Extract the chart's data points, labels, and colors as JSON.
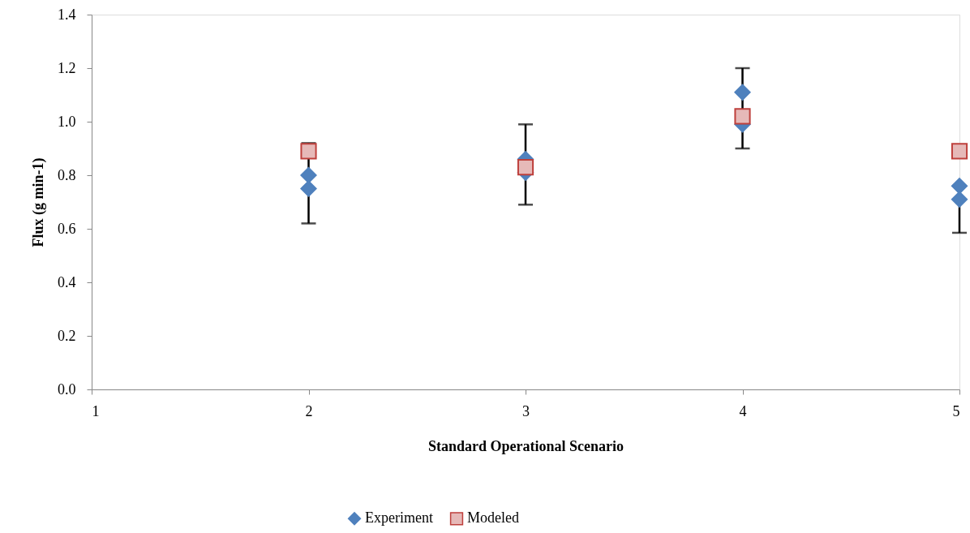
{
  "chart_data": {
    "type": "scatter",
    "xlabel": "Standard Operational Scenario",
    "ylabel": "Flux (g min-1)",
    "xlim": [
      1,
      5
    ],
    "xticks": [
      1,
      2,
      3,
      4,
      5
    ],
    "ylim": [
      0,
      1.4
    ],
    "yticks": [
      {
        "value": 0,
        "label": "0.0"
      },
      {
        "value": 0.2,
        "label": "0.2"
      },
      {
        "value": 0.4,
        "label": "0.4"
      },
      {
        "value": 0.6,
        "label": "0.6"
      },
      {
        "value": 0.8,
        "label": "0.8"
      },
      {
        "value": 1.0,
        "label": "1.0"
      },
      {
        "value": 1.2,
        "label": "1.2"
      },
      {
        "value": 1.4,
        "label": "1.4"
      }
    ],
    "grid": false,
    "legend": "bottom",
    "series": [
      {
        "name": "Experiment",
        "color": "#4f81bd",
        "marker": "diamond",
        "x": [
          2,
          2,
          3,
          3,
          4,
          4,
          5,
          5
        ],
        "values": [
          0.8,
          0.75,
          0.86,
          0.81,
          1.11,
          0.99,
          0.76,
          0.71
        ],
        "errors": [
          [
            0.62,
            0.92
          ],
          null,
          [
            0.69,
            0.99
          ],
          null,
          [
            0.9,
            1.2
          ],
          null,
          [
            0.585,
            0.76
          ],
          null
        ]
      },
      {
        "name": "Modeled",
        "color": "#e6b9b8",
        "marker": "square",
        "x": [
          2,
          3,
          4,
          5
        ],
        "values": [
          0.89,
          0.83,
          1.02,
          0.89
        ]
      }
    ]
  }
}
